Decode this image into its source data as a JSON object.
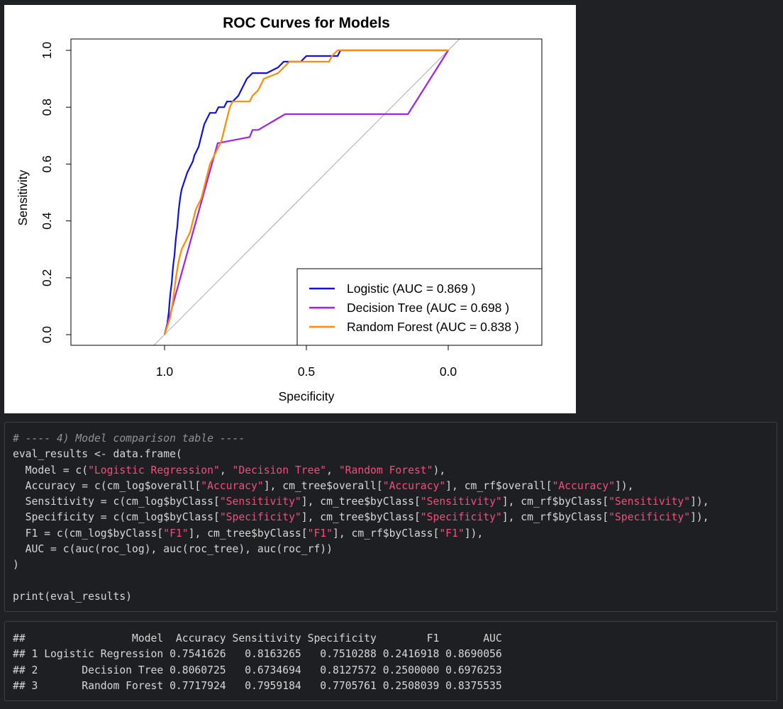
{
  "chart_data": {
    "type": "line",
    "title": "ROC Curves for Models",
    "xlabel": "Specificity",
    "ylabel": "Sensitivity",
    "xlim": [
      1.0,
      0.0
    ],
    "ylim": [
      0.0,
      1.0
    ],
    "x_reversed": true,
    "x_ticks": [
      "1.0",
      "0.5",
      "0.0"
    ],
    "y_ticks": [
      "0.0",
      "0.2",
      "0.4",
      "0.6",
      "0.8",
      "1.0"
    ],
    "grid": false,
    "legend_position": "bottom-right",
    "diagonal_reference_color": "#aaaaaa",
    "series": [
      {
        "name": "Logistic (AUC = 0.869 )",
        "color": "#1111dd",
        "points": [
          [
            1.0,
            0.0
          ],
          [
            0.99,
            0.04
          ],
          [
            0.985,
            0.08
          ],
          [
            0.98,
            0.14
          ],
          [
            0.975,
            0.18
          ],
          [
            0.97,
            0.24
          ],
          [
            0.965,
            0.28
          ],
          [
            0.96,
            0.34
          ],
          [
            0.955,
            0.38
          ],
          [
            0.95,
            0.44
          ],
          [
            0.945,
            0.48
          ],
          [
            0.94,
            0.51
          ],
          [
            0.93,
            0.54
          ],
          [
            0.92,
            0.57
          ],
          [
            0.91,
            0.59
          ],
          [
            0.9,
            0.61
          ],
          [
            0.895,
            0.63
          ],
          [
            0.88,
            0.66
          ],
          [
            0.87,
            0.7
          ],
          [
            0.86,
            0.74
          ],
          [
            0.85,
            0.76
          ],
          [
            0.84,
            0.78
          ],
          [
            0.82,
            0.78
          ],
          [
            0.81,
            0.8
          ],
          [
            0.79,
            0.8
          ],
          [
            0.78,
            0.82
          ],
          [
            0.76,
            0.82
          ],
          [
            0.74,
            0.84
          ],
          [
            0.73,
            0.86
          ],
          [
            0.72,
            0.88
          ],
          [
            0.71,
            0.9
          ],
          [
            0.69,
            0.92
          ],
          [
            0.66,
            0.92
          ],
          [
            0.64,
            0.92
          ],
          [
            0.6,
            0.94
          ],
          [
            0.58,
            0.96
          ],
          [
            0.52,
            0.96
          ],
          [
            0.5,
            0.98
          ],
          [
            0.39,
            0.98
          ],
          [
            0.38,
            1.0
          ],
          [
            0.0,
            1.0
          ]
        ]
      },
      {
        "name": "Decision Tree (AUC = 0.698 )",
        "color": "#a020f0",
        "points": [
          [
            1.0,
            0.0
          ],
          [
            0.8127572,
            0.6734694
          ],
          [
            0.7,
            0.695
          ],
          [
            0.69,
            0.72
          ],
          [
            0.67,
            0.72
          ],
          [
            0.575,
            0.7755102
          ],
          [
            0.142,
            0.7755102
          ],
          [
            0.0,
            1.0
          ]
        ]
      },
      {
        "name": "Random Forest (AUC = 0.838 )",
        "color": "#ff8c00",
        "points": [
          [
            1.0,
            0.0
          ],
          [
            0.98,
            0.06
          ],
          [
            0.97,
            0.12
          ],
          [
            0.96,
            0.2
          ],
          [
            0.95,
            0.26
          ],
          [
            0.94,
            0.3
          ],
          [
            0.93,
            0.32
          ],
          [
            0.92,
            0.34
          ],
          [
            0.91,
            0.36
          ],
          [
            0.9,
            0.4
          ],
          [
            0.89,
            0.44
          ],
          [
            0.87,
            0.48
          ],
          [
            0.86,
            0.52
          ],
          [
            0.85,
            0.56
          ],
          [
            0.84,
            0.6
          ],
          [
            0.82,
            0.64
          ],
          [
            0.81,
            0.66
          ],
          [
            0.8,
            0.68
          ],
          [
            0.79,
            0.72
          ],
          [
            0.78,
            0.76
          ],
          [
            0.77,
            0.8
          ],
          [
            0.76,
            0.82
          ],
          [
            0.7,
            0.82
          ],
          [
            0.69,
            0.84
          ],
          [
            0.67,
            0.86
          ],
          [
            0.66,
            0.88
          ],
          [
            0.65,
            0.9
          ],
          [
            0.6,
            0.92
          ],
          [
            0.58,
            0.94
          ],
          [
            0.56,
            0.96
          ],
          [
            0.42,
            0.96
          ],
          [
            0.41,
            0.98
          ],
          [
            0.39,
            1.0
          ],
          [
            0.0,
            1.0
          ]
        ]
      }
    ]
  },
  "code": {
    "lines": [
      [
        {
          "t": "# ---- 4) Model comparison table ----",
          "c": "comment"
        }
      ],
      [
        {
          "t": "eval_results <- data.frame(",
          "c": ""
        }
      ],
      [
        {
          "t": "  Model = c(",
          "c": ""
        },
        {
          "t": "\"Logistic Regression\"",
          "c": "str"
        },
        {
          "t": ", ",
          "c": ""
        },
        {
          "t": "\"Decision Tree\"",
          "c": "str"
        },
        {
          "t": ", ",
          "c": ""
        },
        {
          "t": "\"Random Forest\"",
          "c": "str"
        },
        {
          "t": "),",
          "c": ""
        }
      ],
      [
        {
          "t": "  Accuracy = c(cm_log$overall[",
          "c": ""
        },
        {
          "t": "\"Accuracy\"",
          "c": "str"
        },
        {
          "t": "], cm_tree$overall[",
          "c": ""
        },
        {
          "t": "\"Accuracy\"",
          "c": "str"
        },
        {
          "t": "], cm_rf$overall[",
          "c": ""
        },
        {
          "t": "\"Accuracy\"",
          "c": "str"
        },
        {
          "t": "]),",
          "c": ""
        }
      ],
      [
        {
          "t": "  Sensitivity = c(cm_log$byClass[",
          "c": ""
        },
        {
          "t": "\"Sensitivity\"",
          "c": "str"
        },
        {
          "t": "], cm_tree$byClass[",
          "c": ""
        },
        {
          "t": "\"Sensitivity\"",
          "c": "str"
        },
        {
          "t": "], cm_rf$byClass[",
          "c": ""
        },
        {
          "t": "\"Sensitivity\"",
          "c": "str"
        },
        {
          "t": "]),",
          "c": ""
        }
      ],
      [
        {
          "t": "  Specificity = c(cm_log$byClass[",
          "c": ""
        },
        {
          "t": "\"Specificity\"",
          "c": "str"
        },
        {
          "t": "], cm_tree$byClass[",
          "c": ""
        },
        {
          "t": "\"Specificity\"",
          "c": "str"
        },
        {
          "t": "], cm_rf$byClass[",
          "c": ""
        },
        {
          "t": "\"Specificity\"",
          "c": "str"
        },
        {
          "t": "]),",
          "c": ""
        }
      ],
      [
        {
          "t": "  F1 = c(cm_log$byClass[",
          "c": ""
        },
        {
          "t": "\"F1\"",
          "c": "str"
        },
        {
          "t": "], cm_tree$byClass[",
          "c": ""
        },
        {
          "t": "\"F1\"",
          "c": "str"
        },
        {
          "t": "], cm_rf$byClass[",
          "c": ""
        },
        {
          "t": "\"F1\"",
          "c": "str"
        },
        {
          "t": "]),",
          "c": ""
        }
      ],
      [
        {
          "t": "  AUC = c(auc(roc_log), auc(roc_tree), auc(roc_rf))",
          "c": ""
        }
      ],
      [
        {
          "t": ")",
          "c": ""
        }
      ],
      [
        {
          "t": "",
          "c": ""
        }
      ],
      [
        {
          "t": "print(eval_results)",
          "c": ""
        }
      ]
    ]
  },
  "output": {
    "lines": [
      "##                 Model  Accuracy Sensitivity Specificity        F1       AUC",
      "## 1 Logistic Regression 0.7541626   0.8163265   0.7510288 0.2416918 0.8690056",
      "## 2       Decision Tree 0.8060725   0.6734694   0.8127572 0.2500000 0.6976253",
      "## 3       Random Forest 0.7717924   0.7959184   0.7705761 0.2508039 0.8375535"
    ]
  }
}
